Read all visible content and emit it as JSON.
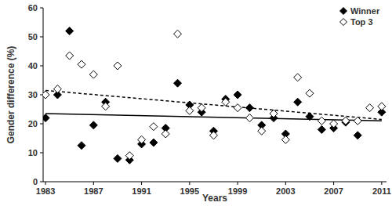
{
  "chart_data": {
    "type": "scatter",
    "x_label": "Years",
    "y_label": "Gender difference (%)",
    "x": [
      1983,
      1984,
      1985,
      1986,
      1987,
      1988,
      1989,
      1990,
      1991,
      1992,
      1993,
      1994,
      1995,
      1996,
      1997,
      1998,
      1999,
      2000,
      2001,
      2002,
      2003,
      2004,
      2005,
      2006,
      2007,
      2008,
      2009,
      2010,
      2011
    ],
    "xlim": [
      1982.8,
      2011.4
    ],
    "xticks": [
      1983,
      1987,
      1991,
      1995,
      1999,
      2003,
      2007,
      2011
    ],
    "ylim": [
      0,
      60
    ],
    "yticks": [
      0,
      10,
      20,
      30,
      40,
      50,
      60
    ],
    "grid": false,
    "legend": "top-right",
    "series": [
      {
        "name": "Winner",
        "color": "#000000",
        "marker": "diamond",
        "values": [
          22,
          30,
          52,
          12.5,
          19.5,
          27.5,
          8,
          7.5,
          13,
          13.5,
          18.5,
          34,
          26.5,
          24,
          17.5,
          28.5,
          30,
          25.5,
          19.5,
          22,
          16.5,
          27.5,
          22.5,
          18,
          18.5,
          20.5,
          16,
          null,
          24
        ],
        "trend": {
          "x": [
            1983,
            2011
          ],
          "values": [
            23.5,
            21
          ],
          "line_style": "solid"
        }
      },
      {
        "name": "Top 3",
        "color": "#000000",
        "marker": "open-diamond",
        "values": [
          30,
          32,
          43.5,
          40.5,
          37,
          26,
          40,
          9,
          14.5,
          19,
          16.5,
          51,
          24.5,
          25.5,
          16,
          27.5,
          25.5,
          22,
          17.5,
          23.5,
          14.5,
          36,
          30.5,
          21,
          20,
          21,
          21,
          25.5,
          26
        ],
        "trend": {
          "x": [
            1983,
            2011
          ],
          "values": [
            31.5,
            21.5
          ],
          "line_style": "dashed"
        }
      }
    ]
  }
}
